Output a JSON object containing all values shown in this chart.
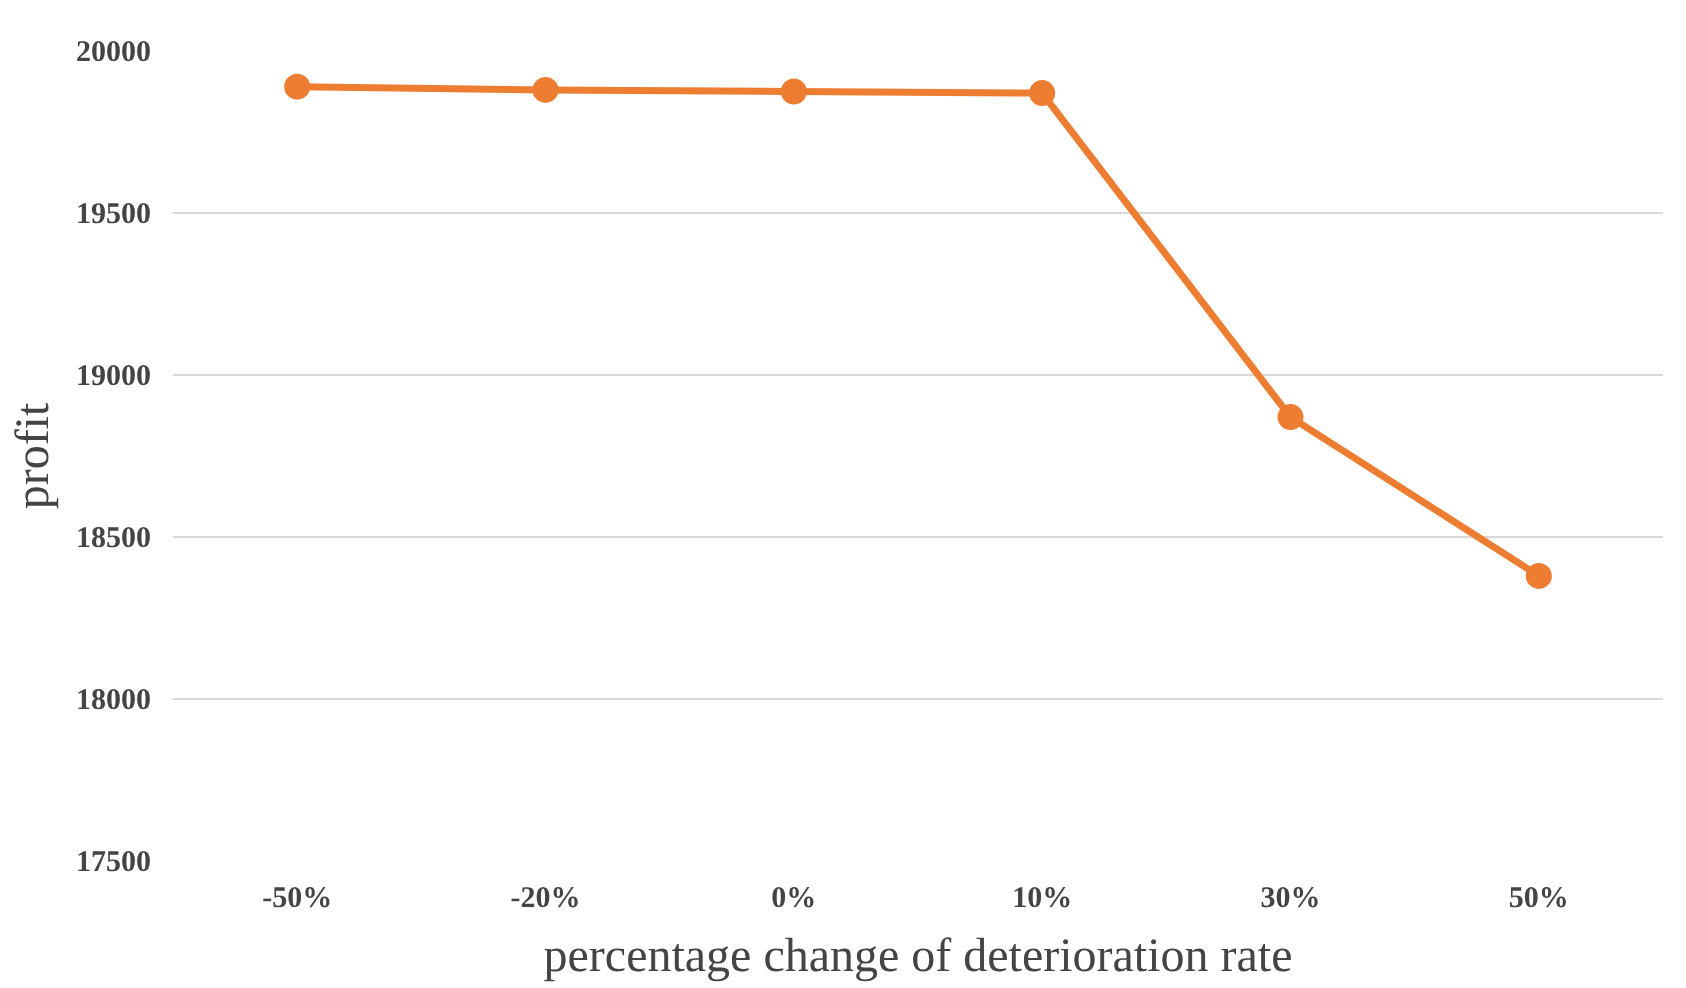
{
  "chart_data": {
    "type": "line",
    "xlabel": "percentage change of deterioration rate",
    "ylabel": "profit",
    "categories": [
      "-50%",
      "-20%",
      "0%",
      "10%",
      "30%",
      "50%"
    ],
    "series": [
      {
        "color": "#ed7d31",
        "values": [
          19890,
          19880,
          19875,
          19870,
          18870,
          18380
        ]
      }
    ],
    "ylim": [
      17500,
      20000
    ],
    "yticks": [
      17500,
      18000,
      18500,
      19000,
      19500,
      20000
    ],
    "grid": "y",
    "marker": "circle",
    "line_style": "solid"
  }
}
